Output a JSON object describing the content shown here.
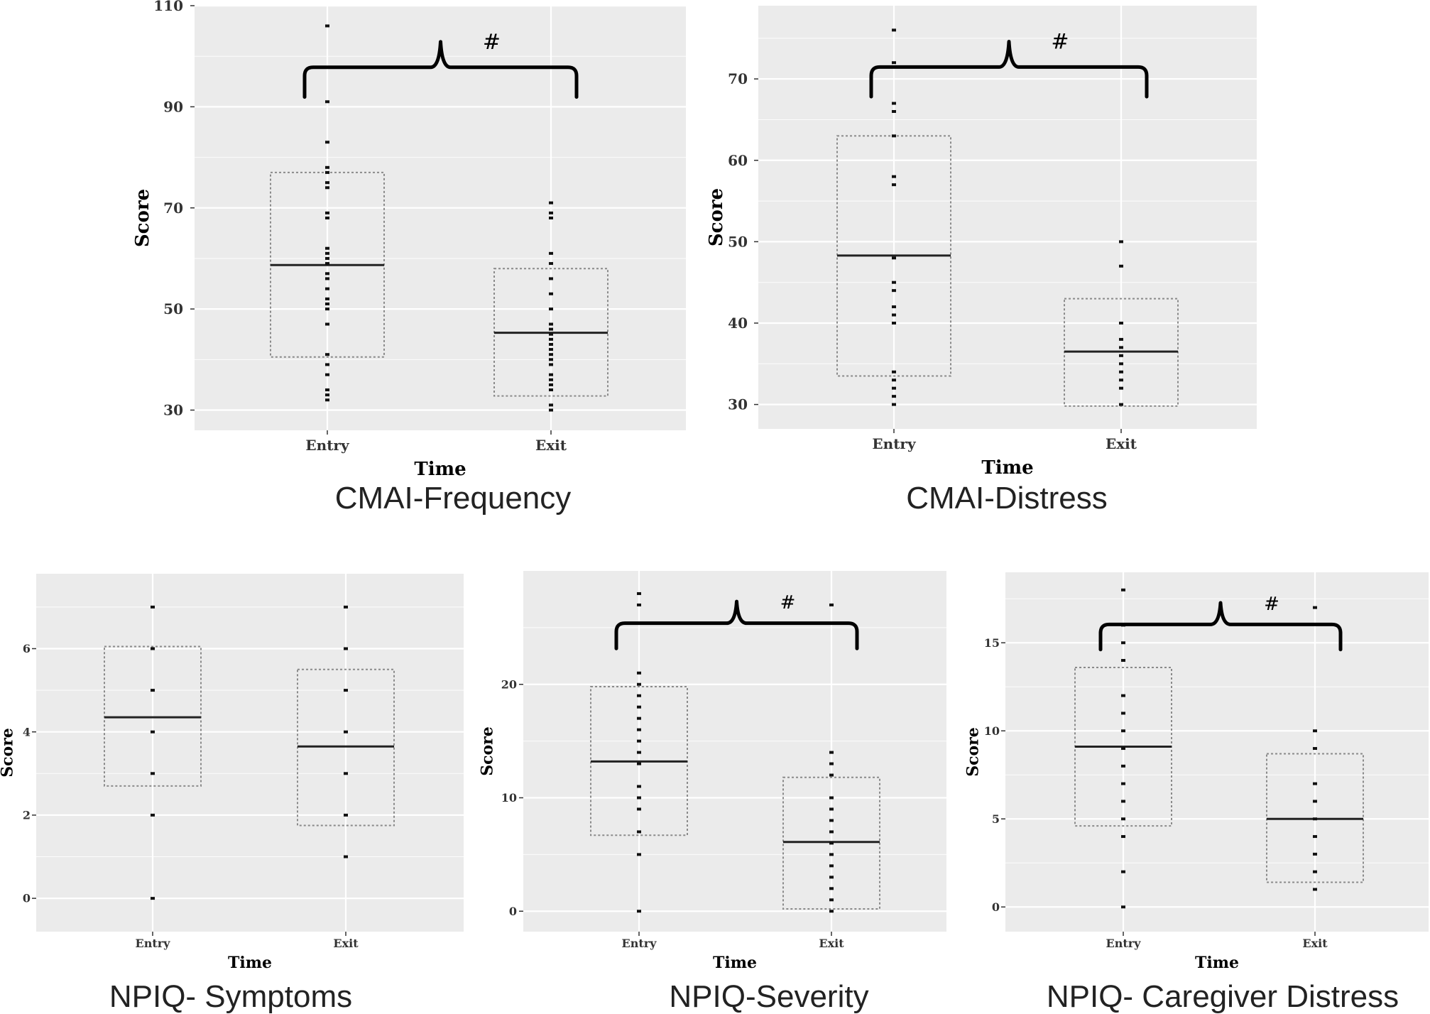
{
  "chart_data": [
    {
      "type": "box",
      "caption": "CMAI-Frequency",
      "xlabel": "Time",
      "ylabel": "Score",
      "categories": [
        "Entry",
        "Exit"
      ],
      "ylim": [
        26,
        110
      ],
      "yticks": [
        30,
        50,
        70,
        90,
        110
      ],
      "boxes": [
        {
          "category": "Entry",
          "q1": 40.5,
          "median": 58.7,
          "q3": 77
        },
        {
          "category": "Exit",
          "q1": 32.8,
          "median": 45.3,
          "q3": 58
        }
      ],
      "points": [
        {
          "category": "Entry",
          "values": [
            106,
            91,
            83,
            78,
            77,
            75,
            74,
            69,
            68,
            62,
            61,
            60,
            59,
            57,
            56,
            54,
            52,
            51,
            50,
            47,
            41,
            39,
            37,
            34,
            33,
            32
          ]
        },
        {
          "category": "Exit",
          "values": [
            71,
            69,
            68,
            61,
            59,
            56,
            53,
            50,
            47,
            46,
            45,
            44,
            43,
            42,
            41,
            40,
            39,
            37,
            36,
            35,
            34,
            31,
            30
          ]
        }
      ],
      "annotation": "#"
    },
    {
      "type": "box",
      "caption": "CMAI-Distress",
      "xlabel": "Time",
      "ylabel": "Score",
      "categories": [
        "Entry",
        "Exit"
      ],
      "ylim": [
        27,
        79
      ],
      "yticks": [
        30,
        40,
        50,
        60,
        70
      ],
      "boxes": [
        {
          "category": "Entry",
          "q1": 33.5,
          "median": 48.3,
          "q3": 63
        },
        {
          "category": "Exit",
          "q1": 29.8,
          "median": 36.5,
          "q3": 43
        }
      ],
      "points": [
        {
          "category": "Entry",
          "values": [
            76,
            72,
            67,
            66,
            63,
            58,
            57,
            48,
            45,
            44,
            42,
            41,
            40,
            34,
            33,
            32,
            31,
            30
          ]
        },
        {
          "category": "Exit",
          "values": [
            50,
            47,
            40,
            38,
            37,
            36,
            35,
            34,
            33,
            32,
            30
          ]
        }
      ],
      "annotation": "#"
    },
    {
      "type": "box",
      "caption": "NPIQ- Symptoms",
      "xlabel": "Time",
      "ylabel": "Score",
      "categories": [
        "Entry",
        "Exit"
      ],
      "ylim": [
        -0.8,
        7.8
      ],
      "yticks": [
        0,
        2,
        4,
        6
      ],
      "boxes": [
        {
          "category": "Entry",
          "q1": 2.7,
          "median": 4.35,
          "q3": 6.05
        },
        {
          "category": "Exit",
          "q1": 1.75,
          "median": 3.65,
          "q3": 5.5
        }
      ],
      "points": [
        {
          "category": "Entry",
          "values": [
            7,
            6,
            5,
            4,
            3,
            2,
            0
          ]
        },
        {
          "category": "Exit",
          "values": [
            7,
            6,
            5,
            4,
            3,
            2,
            1
          ]
        }
      ],
      "annotation": ""
    },
    {
      "type": "box",
      "caption": "NPIQ-Severity",
      "xlabel": "Time",
      "ylabel": "Score",
      "categories": [
        "Entry",
        "Exit"
      ],
      "ylim": [
        -1.8,
        30
      ],
      "yticks": [
        0,
        10,
        20
      ],
      "boxes": [
        {
          "category": "Entry",
          "q1": 6.7,
          "median": 13.2,
          "q3": 19.8
        },
        {
          "category": "Exit",
          "q1": 0.2,
          "median": 6.1,
          "q3": 11.8
        }
      ],
      "points": [
        {
          "category": "Entry",
          "values": [
            28,
            27,
            21,
            20,
            19,
            18,
            17,
            16,
            15,
            14,
            13,
            11,
            10,
            9,
            7,
            5,
            0
          ]
        },
        {
          "category": "Exit",
          "values": [
            27,
            14,
            13,
            12,
            10,
            9,
            8,
            7,
            6,
            5,
            4,
            3,
            2,
            1,
            0
          ]
        }
      ],
      "annotation": "#"
    },
    {
      "type": "box",
      "caption": "NPIQ- Caregiver Distress",
      "xlabel": "Time",
      "ylabel": "Score",
      "categories": [
        "Entry",
        "Exit"
      ],
      "ylim": [
        -1.4,
        19
      ],
      "yticks": [
        0,
        5,
        10,
        15
      ],
      "boxes": [
        {
          "category": "Entry",
          "q1": 4.6,
          "median": 9.1,
          "q3": 13.6
        },
        {
          "category": "Exit",
          "q1": 1.4,
          "median": 5.0,
          "q3": 8.7
        }
      ],
      "points": [
        {
          "category": "Entry",
          "values": [
            18,
            16,
            15,
            14,
            12,
            11,
            10,
            9,
            8,
            7,
            6,
            5,
            4,
            2,
            0
          ]
        },
        {
          "category": "Exit",
          "values": [
            17,
            10,
            9,
            7,
            6,
            5,
            4,
            3,
            2,
            1
          ]
        }
      ],
      "annotation": "#"
    }
  ]
}
